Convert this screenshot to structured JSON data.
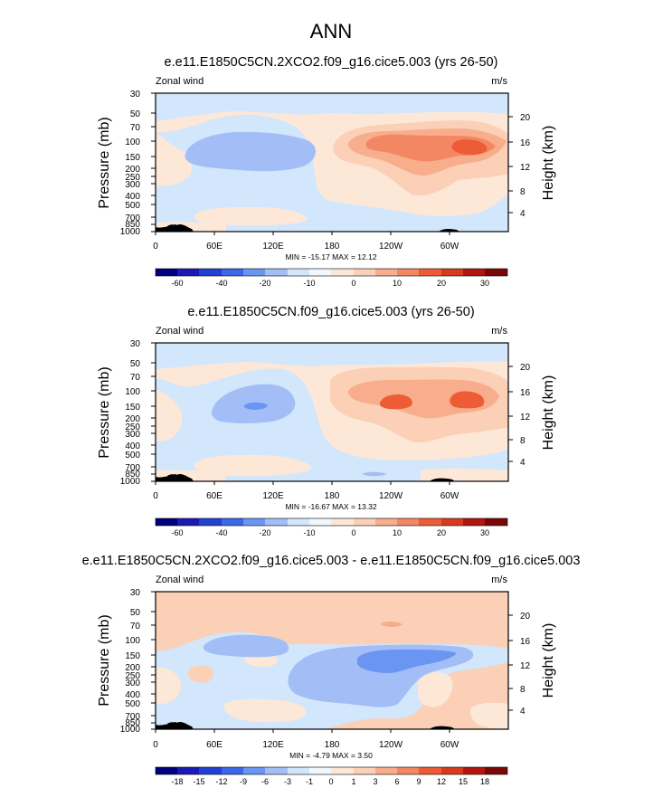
{
  "figure_title": "ANN",
  "colors": {
    "blue_scale": [
      "#00007f",
      "#1a1ab5",
      "#2240d6",
      "#3a68e8",
      "#6a95f2",
      "#a3bdf7",
      "#d2e6fc"
    ],
    "red_scale": [
      "#fde8d8",
      "#fbd0b6",
      "#f8ad8c",
      "#f48763",
      "#ed5c35",
      "#d73a1f",
      "#b2160e",
      "#7a0808"
    ],
    "topography": "#000000"
  },
  "chart_data": [
    {
      "type": "contour",
      "title": "e.e11.E1850C5CN.2XCO2.f09_g16.cice5.003 (yrs 26-50)",
      "variable_label": "Zonal wind",
      "units_label": "m/s",
      "ylabel": "Pressure (mb)",
      "ylabel_right": "Height (km)",
      "x_ticks": [
        "0",
        "60E",
        "120E",
        "180",
        "120W",
        "60W"
      ],
      "y_ticks": [
        "30",
        "50",
        "70",
        "100",
        "150",
        "200",
        "250",
        "300",
        "400",
        "500",
        "700",
        "850",
        "1000"
      ],
      "height_ticks": [
        "20",
        "16",
        "12",
        "8",
        "4"
      ],
      "min_max": "MIN = -15.17  MAX =  12.12",
      "min": -15.17,
      "max": 12.12,
      "contour_levels": [
        "-60",
        "-40",
        "-20",
        "-10",
        "0",
        "10",
        "20",
        "30"
      ]
    },
    {
      "type": "contour",
      "title": "e.e11.E1850C5CN.f09_g16.cice5.003 (yrs 26-50)",
      "variable_label": "Zonal wind",
      "units_label": "m/s",
      "ylabel": "Pressure (mb)",
      "ylabel_right": "Height (km)",
      "x_ticks": [
        "0",
        "60E",
        "120E",
        "180",
        "120W",
        "60W"
      ],
      "y_ticks": [
        "30",
        "50",
        "70",
        "100",
        "150",
        "200",
        "250",
        "300",
        "400",
        "500",
        "700",
        "850",
        "1000"
      ],
      "height_ticks": [
        "20",
        "16",
        "12",
        "8",
        "4"
      ],
      "min_max": "MIN = -16.67  MAX =  13.32",
      "min": -16.67,
      "max": 13.32,
      "contour_levels": [
        "-60",
        "-40",
        "-20",
        "-10",
        "0",
        "10",
        "20",
        "30"
      ]
    },
    {
      "type": "contour",
      "title": "e.e11.E1850C5CN.2XCO2.f09_g16.cice5.003 - e.e11.E1850C5CN.f09_g16.cice5.003",
      "variable_label": "Zonal wind",
      "units_label": "m/s",
      "ylabel": "Pressure (mb)",
      "ylabel_right": "Height (km)",
      "x_ticks": [
        "0",
        "60E",
        "120E",
        "180",
        "120W",
        "60W"
      ],
      "y_ticks": [
        "30",
        "50",
        "70",
        "100",
        "150",
        "200",
        "250",
        "300",
        "400",
        "500",
        "700",
        "850",
        "1000"
      ],
      "height_ticks": [
        "20",
        "16",
        "12",
        "8",
        "4"
      ],
      "min_max": "MIN = -4.79  MAX =  3.50",
      "min": -4.79,
      "max": 3.5,
      "contour_levels": [
        "-18",
        "-15",
        "-12",
        "-9",
        "-6",
        "-3",
        "-1",
        "0",
        "1",
        "3",
        "6",
        "9",
        "12",
        "15",
        "18"
      ]
    }
  ]
}
